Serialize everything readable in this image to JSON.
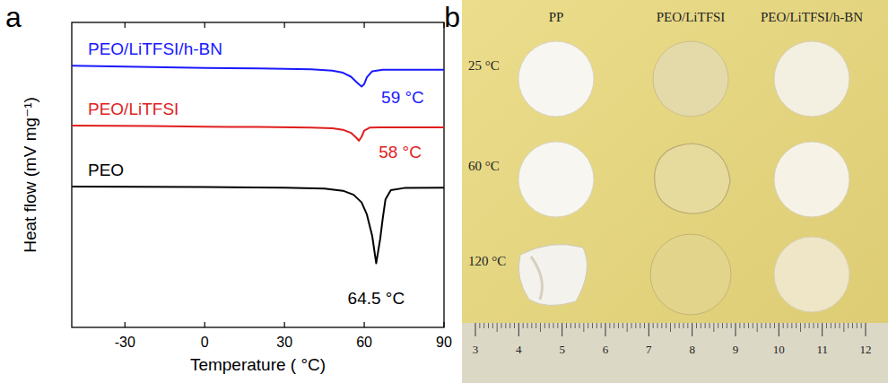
{
  "chart_data": {
    "type": "line",
    "panel_label": "a",
    "x_label": "Temperature ( °C)",
    "y_label": "Heat flow (mV mg⁻¹)",
    "xlim": [
      -50,
      90
    ],
    "xticks": [
      -30,
      0,
      30,
      60,
      90
    ],
    "ylim": [
      0,
      10
    ],
    "tick_labels": "x",
    "series": [
      {
        "name": "PEO/LiTFSI/h-BN",
        "color": "#1a1aff",
        "annotation": "59 °C",
        "x": [
          -50,
          -20,
          0,
          20,
          40,
          48,
          52,
          55,
          57,
          59,
          60,
          61,
          63,
          67,
          90
        ],
        "values": [
          8.58,
          8.54,
          8.51,
          8.49,
          8.46,
          8.42,
          8.35,
          8.22,
          8.05,
          7.9,
          7.98,
          8.2,
          8.4,
          8.45,
          8.45
        ]
      },
      {
        "name": "PEO/LiTFSI",
        "color": "#e01e1e",
        "annotation": "58 °C",
        "x": [
          -50,
          -20,
          0,
          20,
          40,
          48,
          52,
          55,
          57,
          58,
          59,
          60,
          62,
          66,
          90
        ],
        "values": [
          6.62,
          6.6,
          6.58,
          6.57,
          6.55,
          6.53,
          6.48,
          6.38,
          6.22,
          6.12,
          6.25,
          6.45,
          6.55,
          6.56,
          6.56
        ]
      },
      {
        "name": "PEO",
        "color": "#000000",
        "annotation": "64.5 °C",
        "x": [
          -50,
          0,
          30,
          45,
          52,
          56,
          59,
          61,
          63,
          64.5,
          66,
          67,
          68,
          70,
          75,
          90
        ],
        "values": [
          4.62,
          4.6,
          4.58,
          4.55,
          4.48,
          4.35,
          4.1,
          3.7,
          3.0,
          2.1,
          2.9,
          3.6,
          4.2,
          4.5,
          4.57,
          4.58
        ]
      }
    ]
  },
  "photo": {
    "panel_label": "b",
    "columns": [
      "PP",
      "PEO/LiTFSI",
      "PEO/LiTFSI/h-BN"
    ],
    "rows": [
      "25 °C",
      "60 °C",
      "120 °C"
    ],
    "ruler_numbers": [
      3,
      4,
      5,
      6,
      7,
      8,
      9,
      10,
      11,
      12
    ]
  }
}
